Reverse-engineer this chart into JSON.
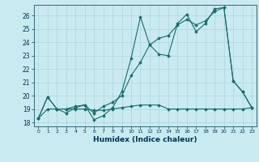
{
  "xlabel": "Humidex (Indice chaleur)",
  "background_color": "#c8eaf0",
  "grid_color": "#b0d4de",
  "line_color": "#1a6b6b",
  "xlim": [
    -0.5,
    23.5
  ],
  "ylim": [
    17.7,
    26.8
  ],
  "yticks": [
    18,
    19,
    20,
    21,
    22,
    23,
    24,
    25,
    26
  ],
  "xticks": [
    0,
    1,
    2,
    3,
    4,
    5,
    6,
    7,
    8,
    9,
    10,
    11,
    12,
    13,
    14,
    15,
    16,
    17,
    18,
    19,
    20,
    21,
    22,
    23
  ],
  "line1_x": [
    0,
    1,
    2,
    3,
    4,
    5,
    6,
    7,
    8,
    9,
    10,
    11,
    12,
    13,
    14,
    15,
    16,
    17,
    18,
    19,
    20,
    21,
    22,
    23
  ],
  "line1_y": [
    18.3,
    19.9,
    19.0,
    18.7,
    19.1,
    19.3,
    18.2,
    18.5,
    19.1,
    20.3,
    22.8,
    25.9,
    23.8,
    23.1,
    23.0,
    25.4,
    26.1,
    24.8,
    25.4,
    26.5,
    26.6,
    21.1,
    20.3,
    19.1
  ],
  "line2_x": [
    0,
    1,
    2,
    3,
    4,
    5,
    6,
    7,
    8,
    9,
    10,
    11,
    12,
    13,
    14,
    15,
    16,
    17,
    18,
    19,
    20,
    21,
    22,
    23
  ],
  "line2_y": [
    18.3,
    19.9,
    19.0,
    19.0,
    19.2,
    19.3,
    18.7,
    19.2,
    19.5,
    20.0,
    21.5,
    22.5,
    23.8,
    24.3,
    24.5,
    25.3,
    25.7,
    25.3,
    25.6,
    26.3,
    26.6,
    21.1,
    20.3,
    19.1
  ],
  "line3_x": [
    0,
    1,
    2,
    3,
    4,
    5,
    6,
    7,
    8,
    9,
    10,
    11,
    12,
    13,
    14,
    15,
    16,
    17,
    18,
    19,
    20,
    21,
    22,
    23
  ],
  "line3_y": [
    18.3,
    19.0,
    19.0,
    19.0,
    19.0,
    19.0,
    18.9,
    18.9,
    19.0,
    19.1,
    19.2,
    19.3,
    19.3,
    19.3,
    19.0,
    19.0,
    19.0,
    19.0,
    19.0,
    19.0,
    19.0,
    19.0,
    19.0,
    19.1
  ]
}
